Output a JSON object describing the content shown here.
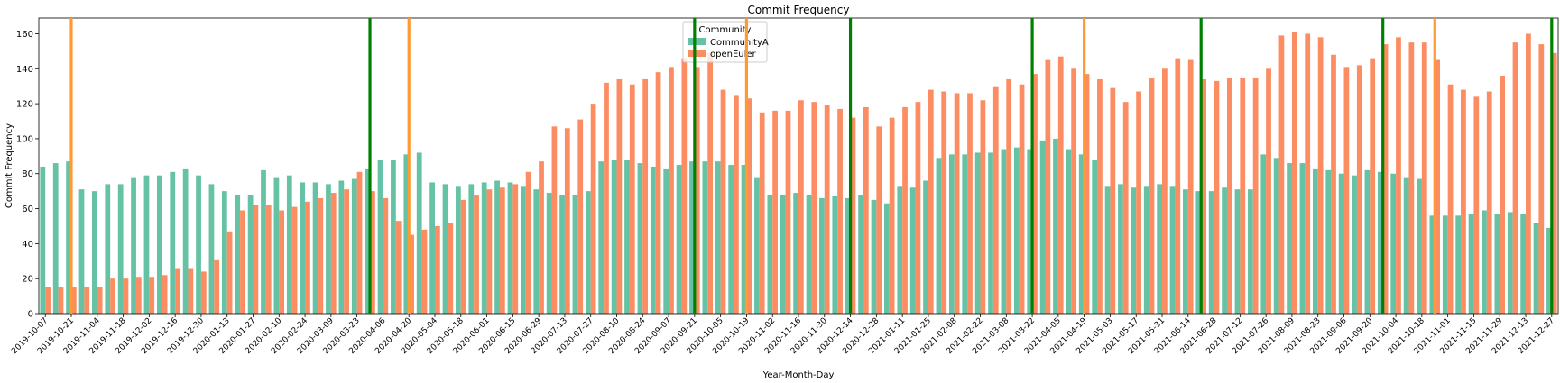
{
  "chart_data": {
    "type": "bar",
    "title": "Commit Frequency",
    "xlabel": "Year-Month-Day",
    "ylabel": "Commit Frequency",
    "ylim": [
      0,
      169
    ],
    "yticks": [
      0,
      20,
      40,
      60,
      80,
      100,
      120,
      140,
      160
    ],
    "legend": {
      "title": "Community",
      "placement": "top-center"
    },
    "colors": {
      "CommunityA": "#66c2a5",
      "openEuler": "#fc8d62",
      "green_line": "#008000",
      "orange_line": "#ff9933"
    },
    "categories": [
      "2019-10-07",
      "2019-10-14",
      "2019-10-21",
      "2019-10-28",
      "2019-11-04",
      "2019-11-11",
      "2019-11-18",
      "2019-11-25",
      "2019-12-02",
      "2019-12-09",
      "2019-12-16",
      "2019-12-23",
      "2019-12-30",
      "2020-01-06",
      "2020-01-13",
      "2020-01-20",
      "2020-01-27",
      "2020-02-03",
      "2020-02-10",
      "2020-02-17",
      "2020-02-24",
      "2020-03-02",
      "2020-03-09",
      "2020-03-16",
      "2020-03-23",
      "2020-03-30",
      "2020-04-06",
      "2020-04-13",
      "2020-04-20",
      "2020-04-27",
      "2020-05-04",
      "2020-05-11",
      "2020-05-18",
      "2020-05-25",
      "2020-06-01",
      "2020-06-08",
      "2020-06-15",
      "2020-06-22",
      "2020-06-29",
      "2020-07-06",
      "2020-07-13",
      "2020-07-20",
      "2020-07-27",
      "2020-08-03",
      "2020-08-10",
      "2020-08-17",
      "2020-08-24",
      "2020-08-31",
      "2020-09-07",
      "2020-09-14",
      "2020-09-21",
      "2020-09-28",
      "2020-10-05",
      "2020-10-12",
      "2020-10-19",
      "2020-10-26",
      "2020-11-02",
      "2020-11-09",
      "2020-11-16",
      "2020-11-23",
      "2020-11-30",
      "2020-12-07",
      "2020-12-14",
      "2020-12-21",
      "2020-12-28",
      "2021-01-04",
      "2021-01-11",
      "2021-01-18",
      "2021-01-25",
      "2021-02-01",
      "2021-02-08",
      "2021-02-15",
      "2021-02-22",
      "2021-03-01",
      "2021-03-08",
      "2021-03-15",
      "2021-03-22",
      "2021-03-29",
      "2021-04-05",
      "2021-04-12",
      "2021-04-19",
      "2021-04-26",
      "2021-05-03",
      "2021-05-10",
      "2021-05-17",
      "2021-05-24",
      "2021-05-31",
      "2021-06-07",
      "2021-06-14",
      "2021-06-21",
      "2021-06-28",
      "2021-07-05",
      "2021-07-12",
      "2021-07-19",
      "2021-07-26",
      "2021-08-02",
      "2021-08-09",
      "2021-08-16",
      "2021-08-23",
      "2021-08-30",
      "2021-09-06",
      "2021-09-13",
      "2021-09-20",
      "2021-09-27",
      "2021-10-04",
      "2021-10-11",
      "2021-10-18",
      "2021-10-25",
      "2021-11-01",
      "2021-11-08",
      "2021-11-15",
      "2021-11-22",
      "2021-11-29",
      "2021-12-06",
      "2021-12-13",
      "2021-12-20",
      "2021-12-27"
    ],
    "series": [
      {
        "name": "CommunityA",
        "values": [
          84,
          86,
          87,
          71,
          70,
          74,
          74,
          78,
          79,
          79,
          81,
          83,
          79,
          74,
          70,
          68,
          68,
          82,
          78,
          79,
          75,
          75,
          74,
          76,
          77,
          83,
          88,
          88,
          91,
          92,
          75,
          74,
          73,
          74,
          75,
          76,
          75,
          73,
          71,
          69,
          68,
          68,
          70,
          87,
          88,
          88,
          86,
          84,
          83,
          85,
          87,
          87,
          87,
          85,
          85,
          78,
          68,
          68,
          69,
          68,
          66,
          67,
          66,
          68,
          65,
          63,
          73,
          72,
          76,
          89,
          91,
          91,
          92,
          92,
          94,
          95,
          94,
          99,
          100,
          94,
          91,
          88,
          73,
          74,
          72,
          73,
          74,
          73,
          71,
          70,
          70,
          72,
          71,
          71,
          91,
          89,
          86,
          86,
          83,
          82,
          80,
          79,
          82,
          81,
          80,
          78,
          77,
          56,
          56,
          56,
          57,
          59,
          57,
          58,
          57,
          52,
          49
        ]
      },
      {
        "name": "openEuler",
        "values": [
          15,
          15,
          15,
          15,
          15,
          20,
          20,
          21,
          21,
          22,
          26,
          26,
          24,
          31,
          47,
          59,
          62,
          62,
          59,
          61,
          64,
          66,
          69,
          71,
          81,
          70,
          66,
          53,
          45,
          48,
          50,
          52,
          65,
          68,
          71,
          72,
          74,
          81,
          87,
          107,
          106,
          111,
          120,
          132,
          134,
          131,
          134,
          138,
          141,
          146,
          141,
          149,
          128,
          125,
          123,
          115,
          116,
          116,
          122,
          121,
          119,
          117,
          112,
          118,
          107,
          112,
          118,
          121,
          128,
          127,
          126,
          126,
          122,
          130,
          134,
          131,
          137,
          145,
          147,
          140,
          137,
          134,
          129,
          121,
          127,
          135,
          140,
          146,
          145,
          134,
          133,
          135,
          135,
          135,
          140,
          159,
          161,
          160,
          158,
          148,
          141,
          142,
          146,
          154,
          158,
          155,
          155,
          145,
          131,
          128,
          124,
          127,
          136,
          155,
          160,
          154,
          149
        ]
      }
    ],
    "green_lines_at": [
      "2020-03-30",
      "2020-09-21",
      "2020-12-14",
      "2021-03-22",
      "2021-06-21",
      "2021-09-27",
      "2021-12-27"
    ],
    "orange_lines_at": [
      "2019-10-21",
      "2020-04-20",
      "2020-10-19",
      "2021-04-19",
      "2021-10-25"
    ]
  }
}
